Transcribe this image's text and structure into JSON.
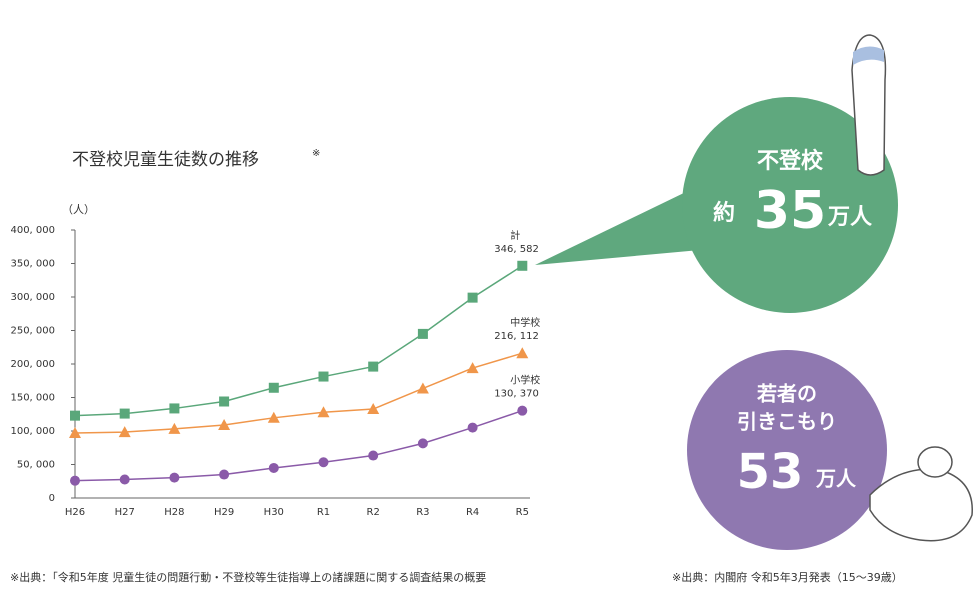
{
  "chart_data": {
    "type": "line",
    "title": "不登校児童生徒数の推移",
    "title_note": "※",
    "y_label": "（人）",
    "categories": [
      "H26",
      "H27",
      "H28",
      "H29",
      "H30",
      "R1",
      "R2",
      "R3",
      "R4",
      "R5"
    ],
    "series": [
      {
        "name": "計",
        "color": "#5aa77a",
        "marker": "square",
        "values": [
          122897,
          125991,
          133683,
          144031,
          164528,
          181272,
          196127,
          244940,
          299048,
          346582
        ],
        "value_labels": [
          null,
          null,
          null,
          null,
          null,
          null,
          null,
          null,
          null,
          "346, 582"
        ]
      },
      {
        "name": "中学校",
        "color": "#f0964a",
        "marker": "triangle",
        "values": [
          97033,
          98408,
          103235,
          108999,
          119687,
          127922,
          132777,
          163442,
          193936,
          216112
        ],
        "value_labels": [
          null,
          null,
          null,
          null,
          null,
          null,
          null,
          null,
          null,
          "216, 112"
        ]
      },
      {
        "name": "小学校",
        "color": "#8a5aa8",
        "marker": "circle",
        "values": [
          25864,
          27583,
          30448,
          35032,
          44841,
          53350,
          63350,
          81498,
          105112,
          130370
        ],
        "value_labels": [
          null,
          null,
          null,
          null,
          null,
          null,
          null,
          null,
          null,
          "130, 370"
        ]
      }
    ],
    "ylim": [
      0,
      400000
    ],
    "yticks": [
      0,
      {
        "value": 50000,
        "label": "50, 000"
      },
      {
        "value": 100000,
        "label": "100, 000"
      },
      {
        "value": 150000,
        "label": "150, 000"
      },
      {
        "value": 200000,
        "label": "200, 000"
      },
      {
        "value": 250000,
        "label": "250, 000"
      },
      {
        "value": 300000,
        "label": "300, 000"
      },
      {
        "value": 350000,
        "label": "350, 000"
      },
      {
        "value": 400000,
        "label": "400, 000"
      }
    ],
    "grid": false
  },
  "infographic": {
    "futoko": {
      "title": "不登校",
      "prefix": "約",
      "number": "35",
      "unit": "万人"
    },
    "hikikomori": {
      "line1": "若者の",
      "line2": "引きこもり",
      "number": "53",
      "unit": "万人"
    }
  },
  "footnotes": {
    "left": "※出典：「令和5年度 児童生徒の問題行動・不登校等生徒指導上の諸課題に関する調査結果の概要",
    "right": "※出典：内閣府 令和5年3月発表（15〜39歳）"
  }
}
